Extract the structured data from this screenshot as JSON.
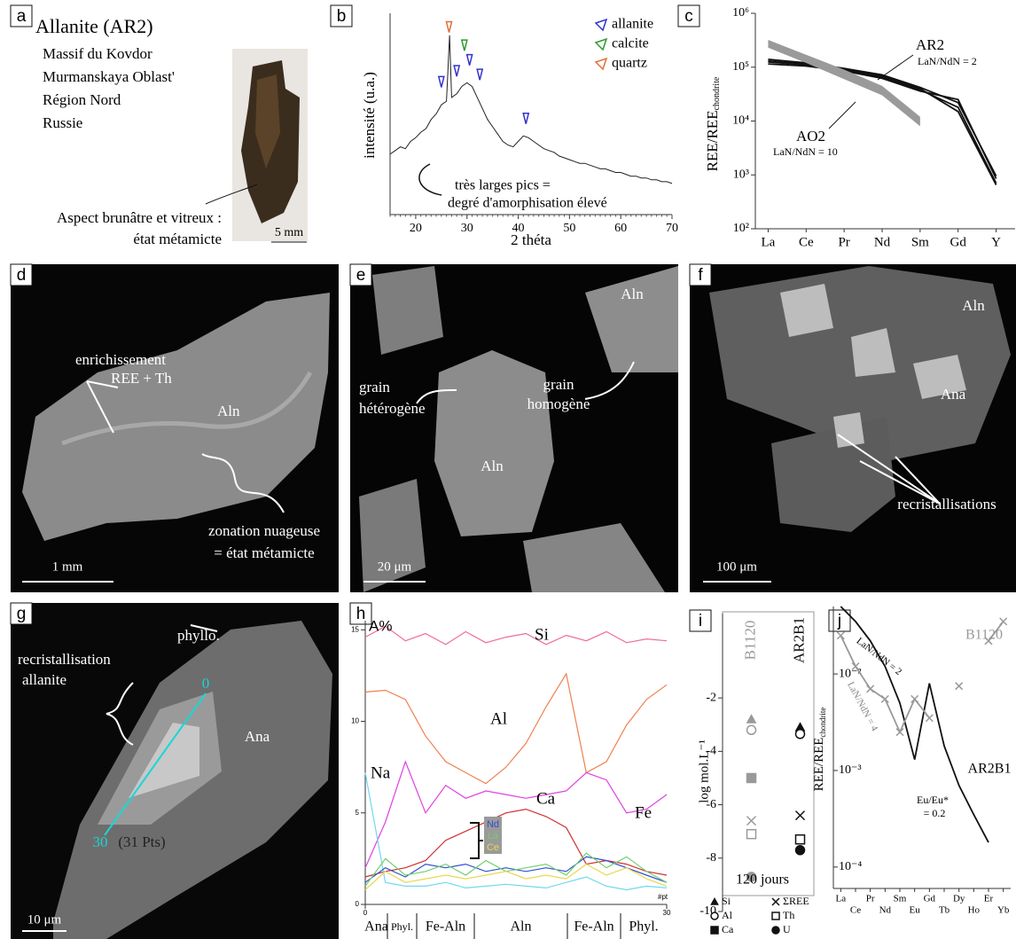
{
  "panels": {
    "a": {
      "label": "a",
      "title": "Allanite (AR2)",
      "lines": [
        "Massif du Kovdor",
        "Murmanskaya Oblast'",
        "Région Nord",
        "Russie"
      ],
      "caption": [
        "Aspect brunâtre et vitreux :",
        "état métamicte"
      ],
      "scale": "5 mm"
    },
    "b": {
      "label": "b"
    },
    "c": {
      "label": "c"
    },
    "d": {
      "label": "d",
      "annotations": [
        "enrichissement",
        "REE + Th",
        "Aln",
        "zonation nuageuse",
        "= état métamicte"
      ],
      "scale": "1 mm"
    },
    "e": {
      "label": "e",
      "annotations": [
        "grain",
        "hétérogène",
        "Aln",
        "grain",
        "homogène",
        "Aln"
      ],
      "scale": "20 μm"
    },
    "f": {
      "label": "f",
      "annotations": [
        "Aln",
        "Ana",
        "recristallisations"
      ],
      "scale": "100 μm"
    },
    "g": {
      "label": "g",
      "annotations": [
        "phyllo.",
        "recristallisation",
        "allanite",
        "Ana",
        "0",
        "30",
        "(31 Pts)"
      ],
      "scale": "10 μm"
    },
    "h": {
      "label": "h"
    },
    "i": {
      "label": "i"
    },
    "j": {
      "label": "j"
    }
  },
  "chart_data": [
    {
      "type": "line",
      "xlabel": "2 théta",
      "ylabel": "intensité (u.a.)",
      "color": "#222222",
      "xlim": [
        15,
        70
      ],
      "xticks": [
        20,
        30,
        40,
        50,
        60,
        70
      ],
      "ylim": [
        0,
        110
      ],
      "x": [
        15,
        16,
        17,
        18,
        19,
        20,
        21,
        22,
        23,
        24,
        25,
        26,
        26.6,
        27,
        28,
        29,
        30,
        31,
        32,
        33,
        34,
        35,
        36,
        37,
        38,
        39,
        40,
        41,
        42,
        43,
        44,
        45,
        46,
        47,
        48,
        49,
        50,
        51,
        52,
        53,
        54,
        55,
        56,
        57,
        58,
        59,
        60,
        61,
        62,
        63,
        64,
        65,
        66,
        67,
        68,
        69,
        70
      ],
      "values": [
        33,
        35,
        37,
        36,
        40,
        42,
        45,
        47,
        52,
        55,
        60,
        62,
        98,
        64,
        66,
        70,
        72,
        70,
        64,
        58,
        52,
        48,
        44,
        40,
        38,
        37,
        40,
        43,
        42,
        40,
        38,
        36,
        35,
        34,
        32,
        31,
        30,
        29,
        28,
        28,
        27,
        26,
        25,
        25,
        24,
        23,
        23,
        22,
        21,
        21,
        20,
        20,
        19,
        19,
        18,
        18,
        17
      ],
      "peaks": [
        {
          "name": "allanite",
          "color": "#3333cc",
          "x": [
            25,
            28,
            30.5,
            32.5,
            41.5
          ],
          "values": [
            72,
            78,
            84,
            76,
            52
          ]
        },
        {
          "name": "calcite",
          "color": "#2e9a2e",
          "x": [
            29.5
          ],
          "values": [
            92
          ]
        },
        {
          "name": "quartz",
          "color": "#e0703a",
          "x": [
            26.5
          ],
          "values": [
            102
          ]
        }
      ],
      "annotation": [
        "très larges pics =",
        "degré d'amorphisation élevé"
      ]
    },
    {
      "type": "line",
      "log_scale": true,
      "ylabel": "REE/REE",
      "ylabel_sub": "chondrite",
      "categories": [
        "La",
        "Ce",
        "Pr",
        "Nd",
        "Sm",
        "Gd",
        "Y"
      ],
      "ylim": [
        100,
        1000000
      ],
      "yticks": [
        {
          "value": 100,
          "label": "10²"
        },
        {
          "value": 1000,
          "label": "10³"
        },
        {
          "value": 10000,
          "label": "10⁴"
        },
        {
          "value": 100000,
          "label": "10⁵"
        },
        {
          "value": 1000000,
          "label": "10⁶"
        }
      ],
      "series": [
        {
          "name": "AR2",
          "color": "#111111",
          "values": [
            140000,
            120000,
            95000,
            72000,
            42000,
            22000,
            950
          ]
        },
        {
          "color": "#111111",
          "values": [
            125000,
            110000,
            90000,
            65000,
            38000,
            18000,
            700
          ]
        },
        {
          "color": "#111111",
          "values": [
            115000,
            105000,
            85000,
            62000,
            36000,
            25000,
            850
          ]
        },
        {
          "color": "#111111",
          "values": [
            130000,
            115000,
            92000,
            68000,
            40000,
            15000,
            650
          ]
        }
      ],
      "band": {
        "name": "AO2",
        "color": "#9a9a9a",
        "upper": [
          320000,
          170000,
          90000,
          45000,
          12000,
          null,
          null
        ],
        "lower": [
          230000,
          120000,
          60000,
          30000,
          8000,
          null,
          null
        ]
      },
      "annotation": [
        "LaN/NdN = 2",
        "LaN/NdN = 10"
      ]
    },
    {
      "type": "line",
      "ylabel": "A%",
      "xlabel": "#pt",
      "xlim": [
        0,
        30
      ],
      "xticks": [
        0,
        30
      ],
      "ylim": [
        0,
        15.5
      ],
      "yticks": [
        0,
        5,
        10,
        15
      ],
      "x": [
        0,
        2,
        4,
        6,
        8,
        10,
        12,
        14,
        16,
        18,
        20,
        22,
        24,
        26,
        28,
        30
      ],
      "series": [
        {
          "name": "Si",
          "color": "#f06aa0",
          "values": [
            14.6,
            15.2,
            14.4,
            14.8,
            14.2,
            14.9,
            14.3,
            14.6,
            14.8,
            14.2,
            14.7,
            14.4,
            14.9,
            14.3,
            14.5,
            14.4
          ]
        },
        {
          "name": "Al",
          "color": "#f08050",
          "values": [
            11.6,
            11.7,
            11.2,
            9.2,
            7.8,
            7.2,
            6.6,
            7.5,
            8.8,
            10.8,
            12.6,
            7.2,
            7.8,
            9.8,
            11.2,
            12.0
          ]
        },
        {
          "name": "Ca",
          "color": "#d03030",
          "values": [
            1.5,
            1.8,
            2.0,
            2.4,
            3.5,
            4.0,
            4.5,
            5.0,
            5.2,
            4.8,
            4.2,
            2.2,
            2.4,
            2.2,
            1.8,
            1.6
          ]
        },
        {
          "name": "Fe",
          "color": "#e040e0",
          "values": [
            2.0,
            4.5,
            7.8,
            5.0,
            6.5,
            5.8,
            6.2,
            6.0,
            5.8,
            6.0,
            6.2,
            7.2,
            6.8,
            5.0,
            5.2,
            6.0
          ]
        },
        {
          "name": "Na",
          "color": "#70d8f0",
          "values": [
            7.2,
            1.2,
            1.0,
            1.0,
            1.2,
            0.9,
            1.0,
            1.1,
            1.0,
            0.9,
            1.2,
            1.5,
            1.0,
            0.8,
            1.0,
            0.9
          ]
        },
        {
          "name": "Nd",
          "color": "#3050d0",
          "values": [
            1.2,
            2.0,
            1.5,
            2.2,
            2.0,
            2.2,
            1.8,
            2.0,
            1.8,
            2.0,
            1.8,
            2.6,
            2.4,
            2.0,
            1.6,
            1.2
          ]
        },
        {
          "name": "La",
          "color": "#70d070",
          "values": [
            1.0,
            2.5,
            1.6,
            1.8,
            2.2,
            1.6,
            2.4,
            1.8,
            2.0,
            2.2,
            1.6,
            2.8,
            2.0,
            2.6,
            1.8,
            1.2
          ]
        },
        {
          "name": "Ce",
          "color": "#e8d850",
          "values": [
            0.8,
            1.8,
            1.2,
            1.4,
            1.6,
            1.4,
            1.6,
            1.8,
            1.4,
            1.6,
            1.4,
            2.2,
            1.6,
            2.0,
            1.4,
            1.0
          ]
        }
      ],
      "zones": [
        "Ana",
        "Phyl.",
        "Fe-Aln",
        "Aln",
        "Fe-Aln",
        "Phyl."
      ]
    },
    {
      "type": "scatter",
      "ylabel": "log mol.L⁻¹",
      "ylim": [
        -10,
        -0.5
      ],
      "yticks": [
        -10,
        -8,
        -6,
        -4,
        -2
      ],
      "categories": [
        "B1120",
        "AR2B1"
      ],
      "colors": [
        "#999999",
        "#111111"
      ],
      "series": [
        {
          "name": "Si",
          "marker": "triangle",
          "values": [
            -2.8,
            -3.1
          ]
        },
        {
          "name": "Al",
          "marker": "circle-open",
          "values": [
            -3.2,
            -3.35
          ]
        },
        {
          "name": "Ca",
          "marker": "square",
          "values": [
            -5,
            null
          ]
        },
        {
          "name": "ΣREE",
          "marker": "x",
          "values": [
            -6.6,
            -6.4
          ]
        },
        {
          "name": "Th",
          "marker": "square-open",
          "values": [
            -7.1,
            -7.3
          ]
        },
        {
          "name": "U",
          "marker": "circle",
          "values": [
            -8.7,
            -7.7
          ]
        }
      ],
      "annotation": "120 jours"
    },
    {
      "type": "line",
      "log_scale": true,
      "ylabel": "REE/REE",
      "ylabel_sub": "chondrite",
      "categories": [
        "La",
        "Ce",
        "Pr",
        "Nd",
        "Sm",
        "Eu",
        "Gd",
        "Tb",
        "Dy",
        "Ho",
        "Er",
        "Yb"
      ],
      "ylim": [
        6e-05,
        0.05
      ],
      "yticks": [
        {
          "value": 0.0001,
          "label": "10⁻⁴"
        },
        {
          "value": 0.001,
          "label": "10⁻³"
        },
        {
          "value": 0.01,
          "label": "10⁻²"
        }
      ],
      "series": [
        {
          "name": "AR2B1",
          "color": "#111111",
          "values": [
            0.05,
            0.035,
            0.022,
            0.012,
            0.005,
            0.0013,
            0.008,
            0.0018,
            0.0007,
            0.00035,
            0.00018,
            null
          ]
        },
        {
          "name": "B1120",
          "color": "#999999",
          "marker": "x",
          "values": [
            0.025,
            0.012,
            0.007,
            0.0055,
            0.0025,
            0.0055,
            0.0035,
            null,
            0.0075,
            null,
            0.022,
            0.035
          ]
        }
      ],
      "annotation": [
        "LaN/NdN = 2",
        "LaN/NdN = 4",
        "Eu/Eu*",
        "= 0.2"
      ]
    }
  ]
}
